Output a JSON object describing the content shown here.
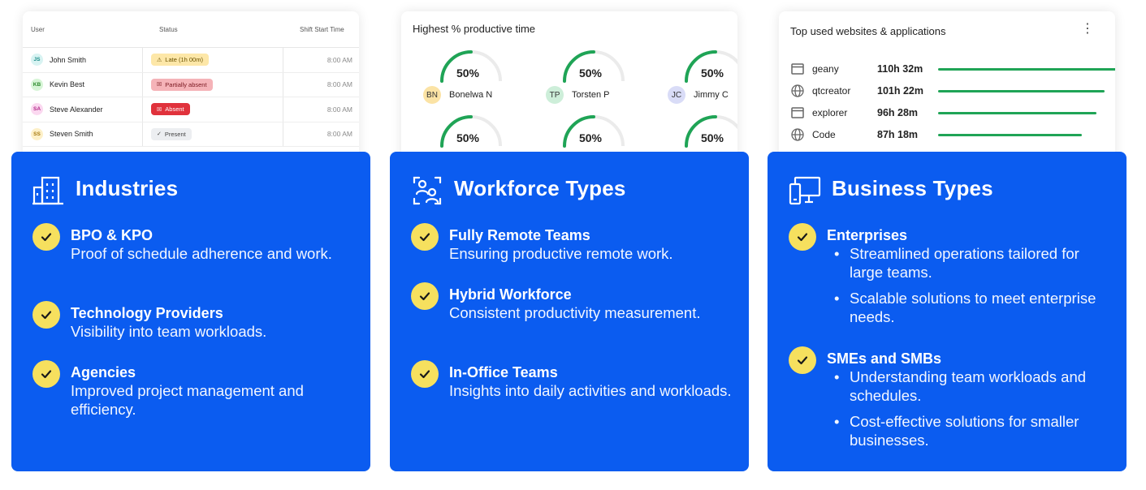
{
  "attendance": {
    "headers": {
      "user": "User",
      "status": "Status",
      "shift": "Shift Start Time"
    },
    "rows": [
      {
        "initials": "JS",
        "name": "John Smith",
        "status": "Late (1h 00m)",
        "status_kind": "late",
        "status_icon": "warning-icon",
        "time": "8:00 AM",
        "avatar_bg": "#d8f3f2",
        "avatar_fg": "#1b8c88"
      },
      {
        "initials": "KB",
        "name": "Kevin Best",
        "status": "Partially absent",
        "status_kind": "partial",
        "status_icon": "x-square-icon",
        "time": "8:00 AM",
        "avatar_bg": "#d6f5d6",
        "avatar_fg": "#2c8a2c"
      },
      {
        "initials": "SA",
        "name": "Steve Alexander",
        "status": "Absent",
        "status_kind": "absent",
        "status_icon": "x-square-icon",
        "time": "8:00 AM",
        "avatar_bg": "#fbd8f0",
        "avatar_fg": "#b02687"
      },
      {
        "initials": "SS",
        "name": "Steven Smith",
        "status": "Present",
        "status_kind": "present",
        "status_icon": "check-icon",
        "time": "8:00 AM",
        "avatar_bg": "#fdf0c8",
        "avatar_fg": "#a6780e"
      }
    ]
  },
  "productivity": {
    "title": "Highest % productive time",
    "gauges": [
      {
        "value": "50%",
        "fraction": 0.5,
        "initials": "BN",
        "name": "Bonelwa N",
        "avatar_bg": "#fbe3a5"
      },
      {
        "value": "50%",
        "fraction": 0.5,
        "initials": "TP",
        "name": "Torsten P",
        "avatar_bg": "#cdeed9"
      },
      {
        "value": "50%",
        "fraction": 0.5,
        "initials": "JC",
        "name": "Jimmy C",
        "avatar_bg": "#d9dcf7"
      },
      {
        "value": "50%",
        "fraction": 0.5
      },
      {
        "value": "50%",
        "fraction": 0.5
      },
      {
        "value": "50%",
        "fraction": 0.5
      }
    ],
    "accent": "#1fa456"
  },
  "top_apps": {
    "title": "Top used websites & applications",
    "menu_icon": "kebab-menu-icon",
    "items": [
      {
        "name": "geany",
        "time": "110h 32m",
        "icon": "window-icon",
        "share": 1.0
      },
      {
        "name": "qtcreator",
        "time": "101h 22m",
        "icon": "globe-icon",
        "share": 0.917
      },
      {
        "name": "explorer",
        "time": "96h 28m",
        "icon": "window-icon",
        "share": 0.872
      },
      {
        "name": "Code",
        "time": "87h 18m",
        "icon": "globe-icon",
        "share": 0.79
      }
    ]
  },
  "cards": {
    "industries": {
      "title": "Industries",
      "icon": "buildings-icon",
      "items": [
        {
          "head": "BPO & KPO",
          "desc": "Proof of schedule adherence and work."
        },
        {
          "head": "Technology Providers",
          "desc": "Visibility into team workloads."
        },
        {
          "head": "Agencies",
          "desc": "Improved project management and efficiency."
        }
      ]
    },
    "workforce": {
      "title": "Workforce Types",
      "icon": "users-scan-icon",
      "items": [
        {
          "head": "Fully Remote Teams",
          "desc": "Ensuring productive remote work."
        },
        {
          "head": "Hybrid Workforce",
          "desc": "Consistent productivity measurement."
        },
        {
          "head": "In-Office Teams",
          "desc": "Insights into daily activities and workloads."
        }
      ]
    },
    "business": {
      "title": "Business Types",
      "icon": "devices-icon",
      "items": [
        {
          "head": "Enterprises",
          "bullets": [
            "Streamlined operations tailored for large teams.",
            "Scalable solutions to meet enterprise needs."
          ]
        },
        {
          "head": "SMEs and SMBs",
          "bullets": [
            "Understanding team workloads and schedules.",
            "Cost-effective solutions for smaller businesses."
          ]
        }
      ]
    }
  },
  "colors": {
    "card_blue": "#0b5cf0",
    "check_yellow": "#f6e05e"
  }
}
